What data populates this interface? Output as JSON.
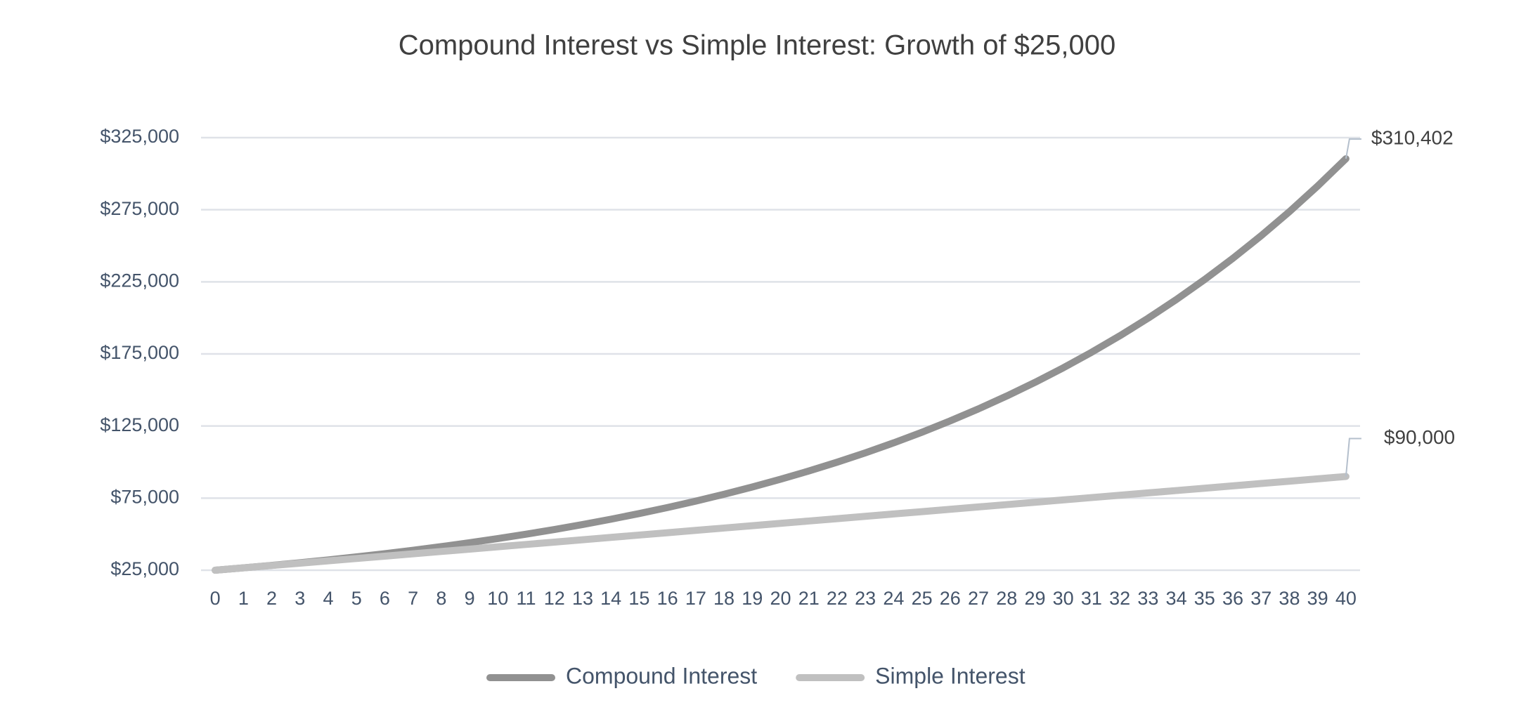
{
  "chart_data": {
    "type": "line",
    "title": "Compound Interest vs Simple Interest: Growth of $25,000",
    "categories": [
      "0",
      "1",
      "2",
      "3",
      "4",
      "5",
      "6",
      "7",
      "8",
      "9",
      "10",
      "11",
      "12",
      "13",
      "14",
      "15",
      "16",
      "17",
      "18",
      "19",
      "20",
      "21",
      "22",
      "23",
      "24",
      "25",
      "26",
      "27",
      "28",
      "29",
      "30",
      "31",
      "32",
      "33",
      "34",
      "35",
      "36",
      "37",
      "38",
      "39",
      "40"
    ],
    "series": [
      {
        "name": "Compound Interest",
        "color": "#919191",
        "values": [
          25000,
          26625,
          28356,
          30199,
          32162,
          34252,
          36479,
          38850,
          41375,
          44064,
          46928,
          49979,
          53227,
          56687,
          60372,
          64296,
          68475,
          72926,
          77666,
          82715,
          88091,
          93817,
          99915,
          106409,
          113326,
          120692,
          128537,
          136892,
          145790,
          155266,
          165359,
          176107,
          187554,
          199745,
          212728,
          226555,
          241282,
          256965,
          273667,
          291456,
          310402
        ],
        "value_labels": [
          null,
          null,
          null,
          null,
          null,
          null,
          null,
          null,
          null,
          null,
          null,
          null,
          null,
          null,
          null,
          null,
          null,
          null,
          null,
          null,
          null,
          null,
          null,
          null,
          null,
          null,
          null,
          null,
          null,
          null,
          null,
          null,
          null,
          null,
          null,
          null,
          null,
          null,
          null,
          null,
          "$310,402"
        ]
      },
      {
        "name": "Simple Interest",
        "color": "#c0c0c0",
        "values": [
          25000,
          26625,
          28250,
          29875,
          31500,
          33125,
          34750,
          36375,
          38000,
          39625,
          41250,
          42875,
          44500,
          46125,
          47750,
          49375,
          51000,
          52625,
          54250,
          55875,
          57500,
          59125,
          60750,
          62375,
          64000,
          65625,
          67250,
          68875,
          70500,
          72125,
          73750,
          75375,
          77000,
          78625,
          80250,
          81875,
          83500,
          85125,
          86750,
          88375,
          90000
        ],
        "value_labels": [
          null,
          null,
          null,
          null,
          null,
          null,
          null,
          null,
          null,
          null,
          null,
          null,
          null,
          null,
          null,
          null,
          null,
          null,
          null,
          null,
          null,
          null,
          null,
          null,
          null,
          null,
          null,
          null,
          null,
          null,
          null,
          null,
          null,
          null,
          null,
          null,
          null,
          null,
          null,
          null,
          "$90,000"
        ]
      }
    ],
    "ylim": [
      25000,
      325000
    ],
    "yticks": [
      {
        "value": 25000,
        "label": "$25,000"
      },
      {
        "value": 75000,
        "label": "$75,000"
      },
      {
        "value": 125000,
        "label": "$125,000"
      },
      {
        "value": 175000,
        "label": "$175,000"
      },
      {
        "value": 225000,
        "label": "$225,000"
      },
      {
        "value": 275000,
        "label": "$275,000"
      },
      {
        "value": 325000,
        "label": "$325,000"
      }
    ],
    "grid": true,
    "legend": "bottom"
  }
}
